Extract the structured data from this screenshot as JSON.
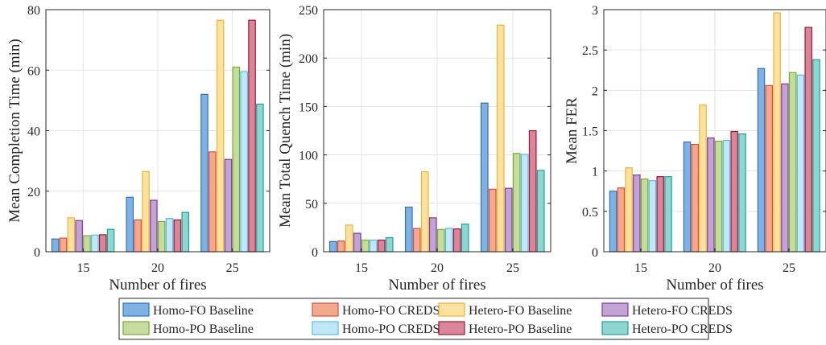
{
  "chart_data": [
    {
      "type": "bar",
      "xlabel": "Number of fires",
      "ylabel": "Mean Completion Time (min)",
      "categories": [
        "15",
        "20",
        "25"
      ],
      "ylim": [
        0,
        80
      ],
      "yticks": [
        "0",
        "20",
        "40",
        "60",
        "80"
      ],
      "grid": true,
      "series": [
        {
          "name": "Homo-FO Baseline",
          "values": [
            4.2,
            18.0,
            52.0
          ]
        },
        {
          "name": "Homo-FO CREDS",
          "values": [
            4.5,
            10.5,
            33.0
          ]
        },
        {
          "name": "Hetero-FO Baseline",
          "values": [
            11.2,
            26.5,
            76.5
          ]
        },
        {
          "name": "Hetero-FO CREDS",
          "values": [
            10.3,
            17.0,
            30.5
          ]
        },
        {
          "name": "Homo-PO Baseline",
          "values": [
            5.3,
            10.0,
            61.0
          ]
        },
        {
          "name": "Homo-PO CREDS",
          "values": [
            5.5,
            11.0,
            59.5
          ]
        },
        {
          "name": "Hetero-PO Baseline",
          "values": [
            5.6,
            10.5,
            76.5
          ]
        },
        {
          "name": "Hetero-PO CREDS",
          "values": [
            7.4,
            13.0,
            48.8
          ]
        }
      ]
    },
    {
      "type": "bar",
      "xlabel": "Number of fires",
      "ylabel": "Mean Total Quench Time (min)",
      "categories": [
        "15",
        "20",
        "25"
      ],
      "ylim": [
        0,
        250
      ],
      "yticks": [
        "0",
        "50",
        "100",
        "150",
        "200",
        "250"
      ],
      "grid": true,
      "series": [
        {
          "name": "Homo-FO Baseline",
          "values": [
            10.5,
            46.0,
            153.5
          ]
        },
        {
          "name": "Homo-FO CREDS",
          "values": [
            11.0,
            24.0,
            64.5
          ]
        },
        {
          "name": "Hetero-FO Baseline",
          "values": [
            27.5,
            82.5,
            234.0
          ]
        },
        {
          "name": "Hetero-FO CREDS",
          "values": [
            19.0,
            35.0,
            65.5
          ]
        },
        {
          "name": "Homo-PO Baseline",
          "values": [
            12.0,
            23.0,
            101.5
          ]
        },
        {
          "name": "Homo-PO CREDS",
          "values": [
            12.0,
            24.0,
            100.5
          ]
        },
        {
          "name": "Hetero-PO Baseline",
          "values": [
            12.0,
            23.5,
            125.0
          ]
        },
        {
          "name": "Hetero-PO CREDS",
          "values": [
            14.5,
            28.5,
            84.0
          ]
        }
      ]
    },
    {
      "type": "bar",
      "xlabel": "Number of fires",
      "ylabel": "Mean FER",
      "categories": [
        "15",
        "20",
        "25"
      ],
      "ylim": [
        0,
        3
      ],
      "yticks": [
        "0",
        "0.5",
        "1",
        "1.5",
        "2",
        "2.5",
        "3"
      ],
      "grid": true,
      "series": [
        {
          "name": "Homo-FO Baseline",
          "values": [
            0.75,
            1.36,
            2.27
          ]
        },
        {
          "name": "Homo-FO CREDS",
          "values": [
            0.79,
            1.33,
            2.06
          ]
        },
        {
          "name": "Hetero-FO Baseline",
          "values": [
            1.04,
            1.82,
            2.96
          ]
        },
        {
          "name": "Hetero-FO CREDS",
          "values": [
            0.95,
            1.41,
            2.08
          ]
        },
        {
          "name": "Homo-PO Baseline",
          "values": [
            0.9,
            1.37,
            2.22
          ]
        },
        {
          "name": "Homo-PO CREDS",
          "values": [
            0.88,
            1.38,
            2.19
          ]
        },
        {
          "name": "Hetero-PO Baseline",
          "values": [
            0.93,
            1.49,
            2.78
          ]
        },
        {
          "name": "Hetero-PO CREDS",
          "values": [
            0.93,
            1.46,
            2.38
          ]
        }
      ]
    }
  ],
  "legend": {
    "placement": "bottom",
    "entries": [
      "Homo-FO Baseline",
      "Homo-FO CREDS",
      "Hetero-FO Baseline",
      "Hetero-FO CREDS",
      "Homo-PO Baseline",
      "Homo-PO CREDS",
      "Hetero-PO Baseline",
      "Hetero-PO CREDS"
    ]
  },
  "colors": {
    "Homo-FO Baseline": {
      "fill": "#7FB2E2",
      "stroke": "#2E72BD"
    },
    "Homo-FO CREDS": {
      "fill": "#F2A98E",
      "stroke": "#D3533A"
    },
    "Hetero-FO Baseline": {
      "fill": "#FAE19E",
      "stroke": "#EAB53A"
    },
    "Hetero-FO CREDS": {
      "fill": "#C2A3D6",
      "stroke": "#7E3F98"
    },
    "Homo-PO Baseline": {
      "fill": "#C5DC9E",
      "stroke": "#77AC30"
    },
    "Homo-PO CREDS": {
      "fill": "#C2E8F8",
      "stroke": "#4DBEEE"
    },
    "Hetero-PO Baseline": {
      "fill": "#D9869A",
      "stroke": "#A2142F"
    },
    "Hetero-PO CREDS": {
      "fill": "#8FD6D0",
      "stroke": "#18A39A"
    }
  }
}
